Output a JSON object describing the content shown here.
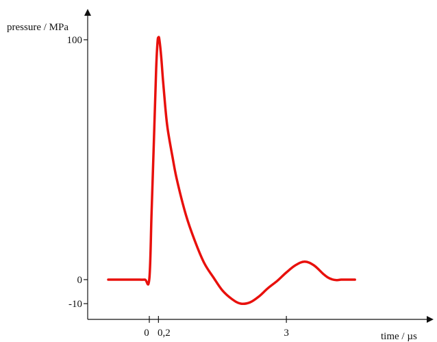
{
  "chart_data": {
    "type": "line",
    "title": "",
    "xlabel": "time / µs",
    "ylabel": "pressure / MPa",
    "x_tick_labels": [
      "0",
      "0,2",
      "3"
    ],
    "x_ticks": [
      0,
      0.2,
      3
    ],
    "y_tick_labels": [
      "100",
      "0",
      "-10"
    ],
    "y_ticks": [
      100,
      0,
      -10
    ],
    "xlim": [
      -0.9,
      4.5
    ],
    "ylim": [
      -13,
      112
    ],
    "grid": false,
    "series": [
      {
        "color": "#e8100c",
        "x": [
          -0.9,
          -0.6,
          -0.3,
          -0.1,
          0,
          0.05,
          0.1,
          0.15,
          0.18,
          0.2,
          0.22,
          0.26,
          0.3,
          0.35,
          0.4,
          0.5,
          0.6,
          0.8,
          1.0,
          1.2,
          1.4,
          1.6,
          1.8,
          2.0,
          2.2,
          2.4,
          2.6,
          2.8,
          3.0,
          3.2,
          3.4,
          3.6,
          3.8,
          3.9,
          4.0,
          4.1,
          4.2,
          4.3,
          4.5
        ],
        "y": [
          0,
          0,
          0,
          0,
          0.3,
          28,
          58,
          88,
          99,
          101,
          100,
          93,
          83,
          72,
          63,
          52,
          42,
          27,
          16,
          7,
          1,
          -4.5,
          -8,
          -10,
          -9.5,
          -7,
          -3.5,
          -0.5,
          3,
          6,
          7.5,
          6,
          2.5,
          1,
          0.1,
          -0.2,
          0,
          0,
          0
        ]
      }
    ]
  }
}
